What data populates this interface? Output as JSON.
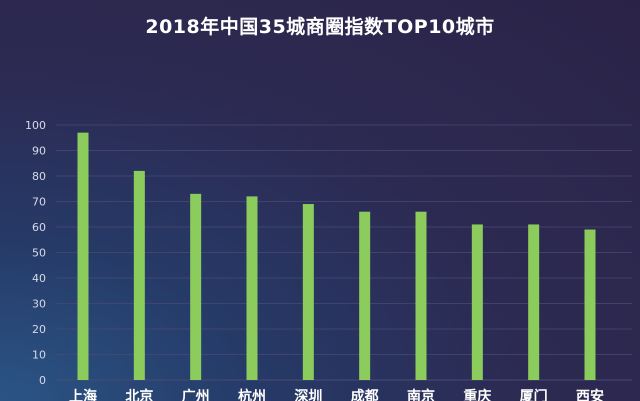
{
  "chart_data": {
    "type": "bar",
    "title": "2018年中国35城商圈指数TOP10城市",
    "categories": [
      "上海",
      "北京",
      "广州",
      "杭州",
      "深圳",
      "成都",
      "南京",
      "重庆",
      "厦门",
      "西安"
    ],
    "values": [
      97,
      82,
      73,
      72,
      69,
      66,
      66,
      61,
      61,
      59
    ],
    "ylim": [
      0,
      100
    ],
    "yticks": [
      0,
      10,
      20,
      30,
      40,
      50,
      60,
      70,
      80,
      90,
      100
    ],
    "xlabel": "",
    "ylabel": "",
    "grid": true,
    "legend": "none",
    "colors": {
      "bar": "#8ccc5c",
      "grid": "#4a4a72",
      "tick_text": "#d8d8e8",
      "title": "#ffffff"
    }
  }
}
